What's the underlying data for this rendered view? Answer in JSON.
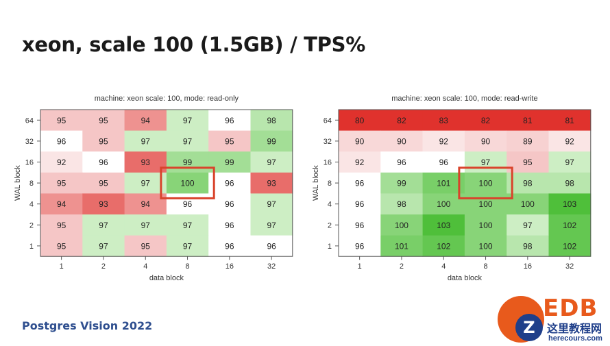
{
  "slide": {
    "title": "xeon, scale 100 (1.5GB) / TPS%",
    "footer": "Postgres Vision 2022"
  },
  "logo": {
    "brand_text": "EDB",
    "watermark_cn": "这里教程网",
    "watermark_url": "herecours.com",
    "watermark_badge": "Z"
  },
  "colors": {
    "strong_red": "#e0322d",
    "light_red": "#f5c6c6",
    "neutral": "#ffffff",
    "light_green": "#cdeec4",
    "strong_green": "#4fbf3a",
    "highlight_box": "#d9432b"
  },
  "chart_data": [
    {
      "type": "heatmap",
      "title": "machine: xeon scale: 100, mode: read-only",
      "xlabel": "data block",
      "ylabel": "WAL block",
      "x": [
        "1",
        "2",
        "4",
        "8",
        "16",
        "32"
      ],
      "y": [
        "64",
        "32",
        "16",
        "8",
        "4",
        "2",
        "1"
      ],
      "values": [
        [
          95,
          95,
          94,
          97,
          96,
          98
        ],
        [
          96,
          95,
          97,
          97,
          95,
          99
        ],
        [
          92,
          96,
          93,
          99,
          99,
          97
        ],
        [
          95,
          95,
          97,
          100,
          96,
          93
        ],
        [
          94,
          93,
          94,
          96,
          96,
          97
        ],
        [
          95,
          97,
          97,
          97,
          96,
          97
        ],
        [
          95,
          97,
          95,
          97,
          96,
          96
        ]
      ],
      "highlight": {
        "x": "8",
        "y": "8"
      }
    },
    {
      "type": "heatmap",
      "title": "machine: xeon scale: 100, mode: read-write",
      "xlabel": "data block",
      "ylabel": "WAL block",
      "x": [
        "1",
        "2",
        "4",
        "8",
        "16",
        "32"
      ],
      "y": [
        "64",
        "32",
        "16",
        "8",
        "4",
        "2",
        "1"
      ],
      "values": [
        [
          80,
          82,
          83,
          82,
          81,
          81
        ],
        [
          90,
          90,
          92,
          90,
          89,
          92
        ],
        [
          92,
          96,
          96,
          97,
          95,
          97
        ],
        [
          96,
          99,
          101,
          100,
          98,
          98
        ],
        [
          96,
          98,
          100,
          100,
          100,
          103
        ],
        [
          96,
          100,
          103,
          100,
          97,
          102
        ],
        [
          96,
          101,
          102,
          100,
          98,
          102
        ]
      ],
      "highlight": {
        "x": "8",
        "y": "8"
      }
    }
  ]
}
